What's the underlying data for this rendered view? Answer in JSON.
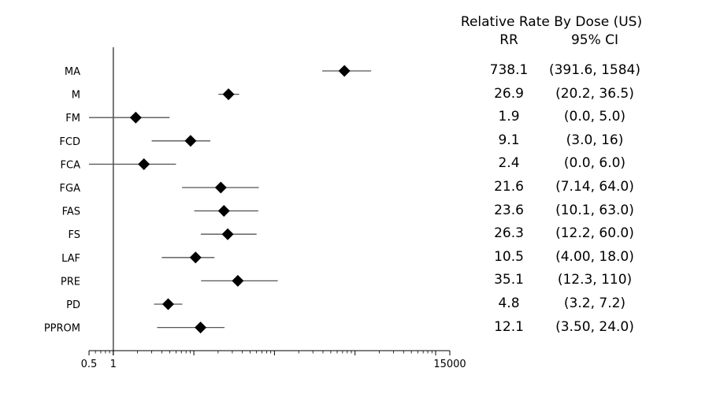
{
  "chart_data": {
    "type": "forest",
    "title": "Relative Rate By Dose (US)",
    "column_headers": {
      "estimate": "RR",
      "interval": "95% CI"
    },
    "x_scale": "log",
    "xlim": [
      0.5,
      15000
    ],
    "x_ticks": [
      0.5,
      1,
      15000
    ],
    "x_tick_labels": [
      "0.5",
      "1",
      "15000"
    ],
    "reference_line_x": 1,
    "rows": [
      {
        "label": "MA",
        "estimate": 738.1,
        "lo": 391.6,
        "hi": 1584,
        "rr_text": "738.1",
        "ci_text": "(391.6, 1584)"
      },
      {
        "label": "M",
        "estimate": 26.9,
        "lo": 20.2,
        "hi": 36.5,
        "rr_text": "26.9",
        "ci_text": "(20.2, 36.5)"
      },
      {
        "label": "FM",
        "estimate": 1.9,
        "lo": 0.5,
        "hi": 5.0,
        "rr_text": "1.9",
        "ci_text": "(0.0, 5.0)"
      },
      {
        "label": "FCD",
        "estimate": 9.1,
        "lo": 3.0,
        "hi": 16,
        "rr_text": "9.1",
        "ci_text": "(3.0, 16)"
      },
      {
        "label": "FCA",
        "estimate": 2.4,
        "lo": 0.5,
        "hi": 6.0,
        "rr_text": "2.4",
        "ci_text": "(0.0, 6.0)"
      },
      {
        "label": "FGA",
        "estimate": 21.6,
        "lo": 7.14,
        "hi": 64.0,
        "rr_text": "21.6",
        "ci_text": "(7.14, 64.0)"
      },
      {
        "label": "FAS",
        "estimate": 23.6,
        "lo": 10.1,
        "hi": 63.0,
        "rr_text": "23.6",
        "ci_text": "(10.1, 63.0)"
      },
      {
        "label": "FS",
        "estimate": 26.3,
        "lo": 12.2,
        "hi": 60.0,
        "rr_text": "26.3",
        "ci_text": "(12.2, 60.0)"
      },
      {
        "label": "LAF",
        "estimate": 10.5,
        "lo": 4.0,
        "hi": 18.0,
        "rr_text": "10.5",
        "ci_text": "(4.00, 18.0)"
      },
      {
        "label": "PRE",
        "estimate": 35.1,
        "lo": 12.3,
        "hi": 110,
        "rr_text": "35.1",
        "ci_text": "(12.3, 110)"
      },
      {
        "label": "PD",
        "estimate": 4.8,
        "lo": 3.2,
        "hi": 7.2,
        "rr_text": "4.8",
        "ci_text": "(3.2, 7.2)"
      },
      {
        "label": "PPROM",
        "estimate": 12.1,
        "lo": 3.5,
        "hi": 24.0,
        "rr_text": "12.1",
        "ci_text": "(3.50, 24.0)"
      }
    ],
    "colors": {
      "marker": "#000000",
      "ci_line": "#555555",
      "reference_line": "#555555"
    }
  }
}
